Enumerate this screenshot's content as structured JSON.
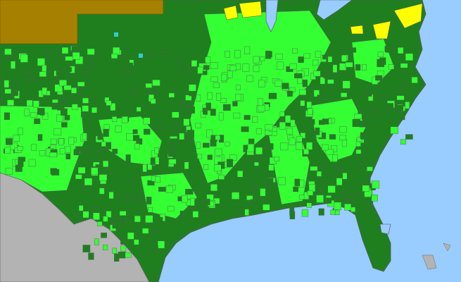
{
  "map": {
    "colors": {
      "ocean": "#99ccff",
      "land_dark_green": "#1f7f1f",
      "land_light_green": "#33ff33",
      "outside_brown": "#a68000",
      "highlight_yellow": "#ffff00",
      "mexico_gray": "#b3b3b3",
      "county_lines": "#555555",
      "cyan_marks": "#33cccc"
    }
  }
}
